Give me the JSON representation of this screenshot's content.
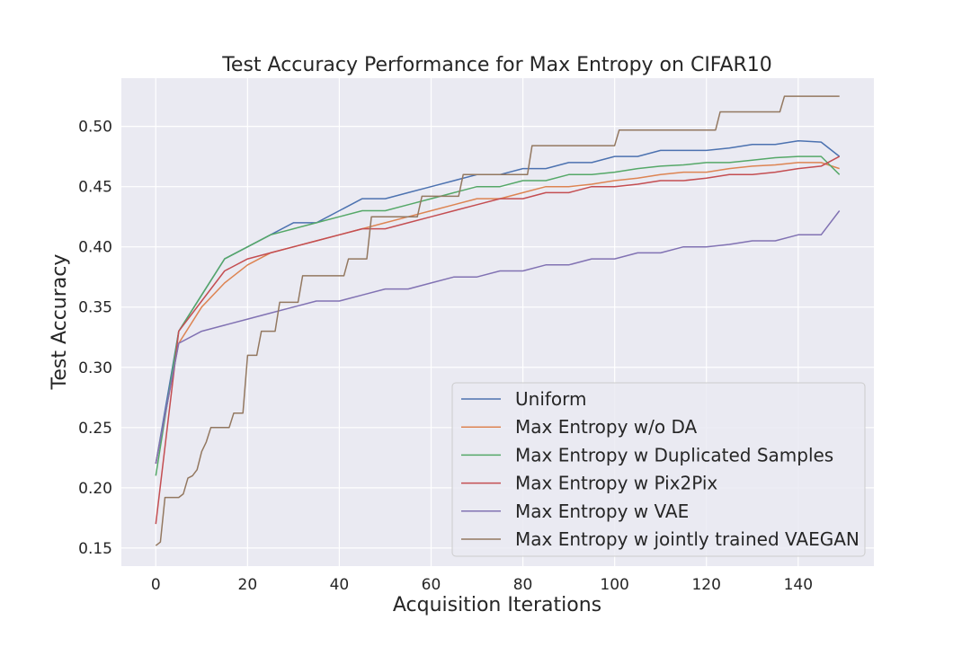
{
  "chart_data": {
    "type": "line",
    "title": "Test Accuracy Performance for Max Entropy on CIFAR10",
    "xlabel": "Acquisition Iterations",
    "ylabel": "Test Accuracy",
    "xlim": [
      -7.5,
      156.5
    ],
    "ylim": [
      0.135,
      0.54
    ],
    "xticks": [
      0,
      20,
      40,
      60,
      80,
      100,
      120,
      140
    ],
    "xtick_labels": [
      "0",
      "20",
      "40",
      "60",
      "80",
      "100",
      "120",
      "140"
    ],
    "yticks": [
      0.15,
      0.2,
      0.25,
      0.3,
      0.35,
      0.4,
      0.45,
      0.5
    ],
    "ytick_labels": [
      "0.15",
      "0.20",
      "0.25",
      "0.30",
      "0.35",
      "0.40",
      "0.45",
      "0.50"
    ],
    "grid": true,
    "legend_position": "lower-right",
    "background": "#eaeaf2",
    "series": [
      {
        "name": "Uniform",
        "color": "#4c72b0",
        "x": [
          0,
          5,
          10,
          15,
          20,
          25,
          30,
          35,
          40,
          45,
          50,
          55,
          60,
          65,
          70,
          75,
          80,
          85,
          90,
          95,
          100,
          105,
          110,
          115,
          120,
          125,
          130,
          135,
          140,
          145,
          149
        ],
        "values": [
          0.22,
          0.33,
          0.36,
          0.39,
          0.4,
          0.41,
          0.42,
          0.42,
          0.43,
          0.44,
          0.44,
          0.445,
          0.45,
          0.455,
          0.46,
          0.46,
          0.465,
          0.465,
          0.47,
          0.47,
          0.475,
          0.475,
          0.48,
          0.48,
          0.48,
          0.482,
          0.485,
          0.485,
          0.488,
          0.487,
          0.475
        ]
      },
      {
        "name": "Max Entropy w/o DA",
        "color": "#dd8452",
        "x": [
          0,
          5,
          10,
          15,
          20,
          25,
          30,
          35,
          40,
          45,
          50,
          55,
          60,
          65,
          70,
          75,
          80,
          85,
          90,
          95,
          100,
          105,
          110,
          115,
          120,
          125,
          130,
          135,
          140,
          145,
          149
        ],
        "values": [
          0.22,
          0.32,
          0.35,
          0.37,
          0.385,
          0.395,
          0.4,
          0.405,
          0.41,
          0.415,
          0.42,
          0.425,
          0.43,
          0.435,
          0.44,
          0.44,
          0.445,
          0.45,
          0.45,
          0.452,
          0.455,
          0.457,
          0.46,
          0.462,
          0.462,
          0.465,
          0.467,
          0.468,
          0.47,
          0.47,
          0.465
        ]
      },
      {
        "name": "Max Entropy w Duplicated Samples",
        "color": "#55a868",
        "x": [
          0,
          5,
          10,
          15,
          20,
          25,
          30,
          35,
          40,
          45,
          50,
          55,
          60,
          65,
          70,
          75,
          80,
          85,
          90,
          95,
          100,
          105,
          110,
          115,
          120,
          125,
          130,
          135,
          140,
          145,
          149
        ],
        "values": [
          0.21,
          0.33,
          0.36,
          0.39,
          0.4,
          0.41,
          0.415,
          0.42,
          0.425,
          0.43,
          0.43,
          0.435,
          0.44,
          0.445,
          0.45,
          0.45,
          0.455,
          0.455,
          0.46,
          0.46,
          0.462,
          0.465,
          0.467,
          0.468,
          0.47,
          0.47,
          0.472,
          0.474,
          0.475,
          0.475,
          0.46
        ]
      },
      {
        "name": "Max Entropy w Pix2Pix",
        "color": "#c44e52",
        "x": [
          0,
          5,
          10,
          15,
          20,
          25,
          30,
          35,
          40,
          45,
          50,
          55,
          60,
          65,
          70,
          75,
          80,
          85,
          90,
          95,
          100,
          105,
          110,
          115,
          120,
          125,
          130,
          135,
          140,
          145,
          149
        ],
        "values": [
          0.17,
          0.33,
          0.355,
          0.38,
          0.39,
          0.395,
          0.4,
          0.405,
          0.41,
          0.415,
          0.415,
          0.42,
          0.425,
          0.43,
          0.435,
          0.44,
          0.44,
          0.445,
          0.445,
          0.45,
          0.45,
          0.452,
          0.455,
          0.455,
          0.457,
          0.46,
          0.46,
          0.462,
          0.465,
          0.467,
          0.475
        ]
      },
      {
        "name": "Max Entropy w VAE",
        "color": "#8172b3",
        "x": [
          0,
          5,
          10,
          15,
          20,
          25,
          30,
          35,
          40,
          45,
          50,
          55,
          60,
          65,
          70,
          75,
          80,
          85,
          90,
          95,
          100,
          105,
          110,
          115,
          120,
          125,
          130,
          135,
          140,
          145,
          149
        ],
        "values": [
          0.22,
          0.32,
          0.33,
          0.335,
          0.34,
          0.345,
          0.35,
          0.355,
          0.355,
          0.36,
          0.365,
          0.365,
          0.37,
          0.375,
          0.375,
          0.38,
          0.38,
          0.385,
          0.385,
          0.39,
          0.39,
          0.395,
          0.395,
          0.4,
          0.4,
          0.402,
          0.405,
          0.405,
          0.41,
          0.41,
          0.43
        ]
      },
      {
        "name": "Max Entropy w jointly trained VAEGAN",
        "color": "#937860",
        "x": [
          0,
          1,
          2,
          5,
          6,
          7,
          8,
          9,
          10,
          11,
          12,
          16,
          17,
          19,
          20,
          22,
          23,
          26,
          27,
          31,
          32,
          41,
          42,
          46,
          47,
          57,
          58,
          66,
          67,
          81,
          82,
          100,
          101,
          122,
          123,
          136,
          137,
          149
        ],
        "values": [
          0.152,
          0.155,
          0.192,
          0.192,
          0.195,
          0.208,
          0.21,
          0.215,
          0.23,
          0.238,
          0.25,
          0.25,
          0.262,
          0.262,
          0.31,
          0.31,
          0.33,
          0.33,
          0.354,
          0.354,
          0.376,
          0.376,
          0.39,
          0.39,
          0.425,
          0.425,
          0.442,
          0.442,
          0.46,
          0.46,
          0.484,
          0.484,
          0.497,
          0.497,
          0.512,
          0.512,
          0.525,
          0.525
        ]
      }
    ]
  }
}
